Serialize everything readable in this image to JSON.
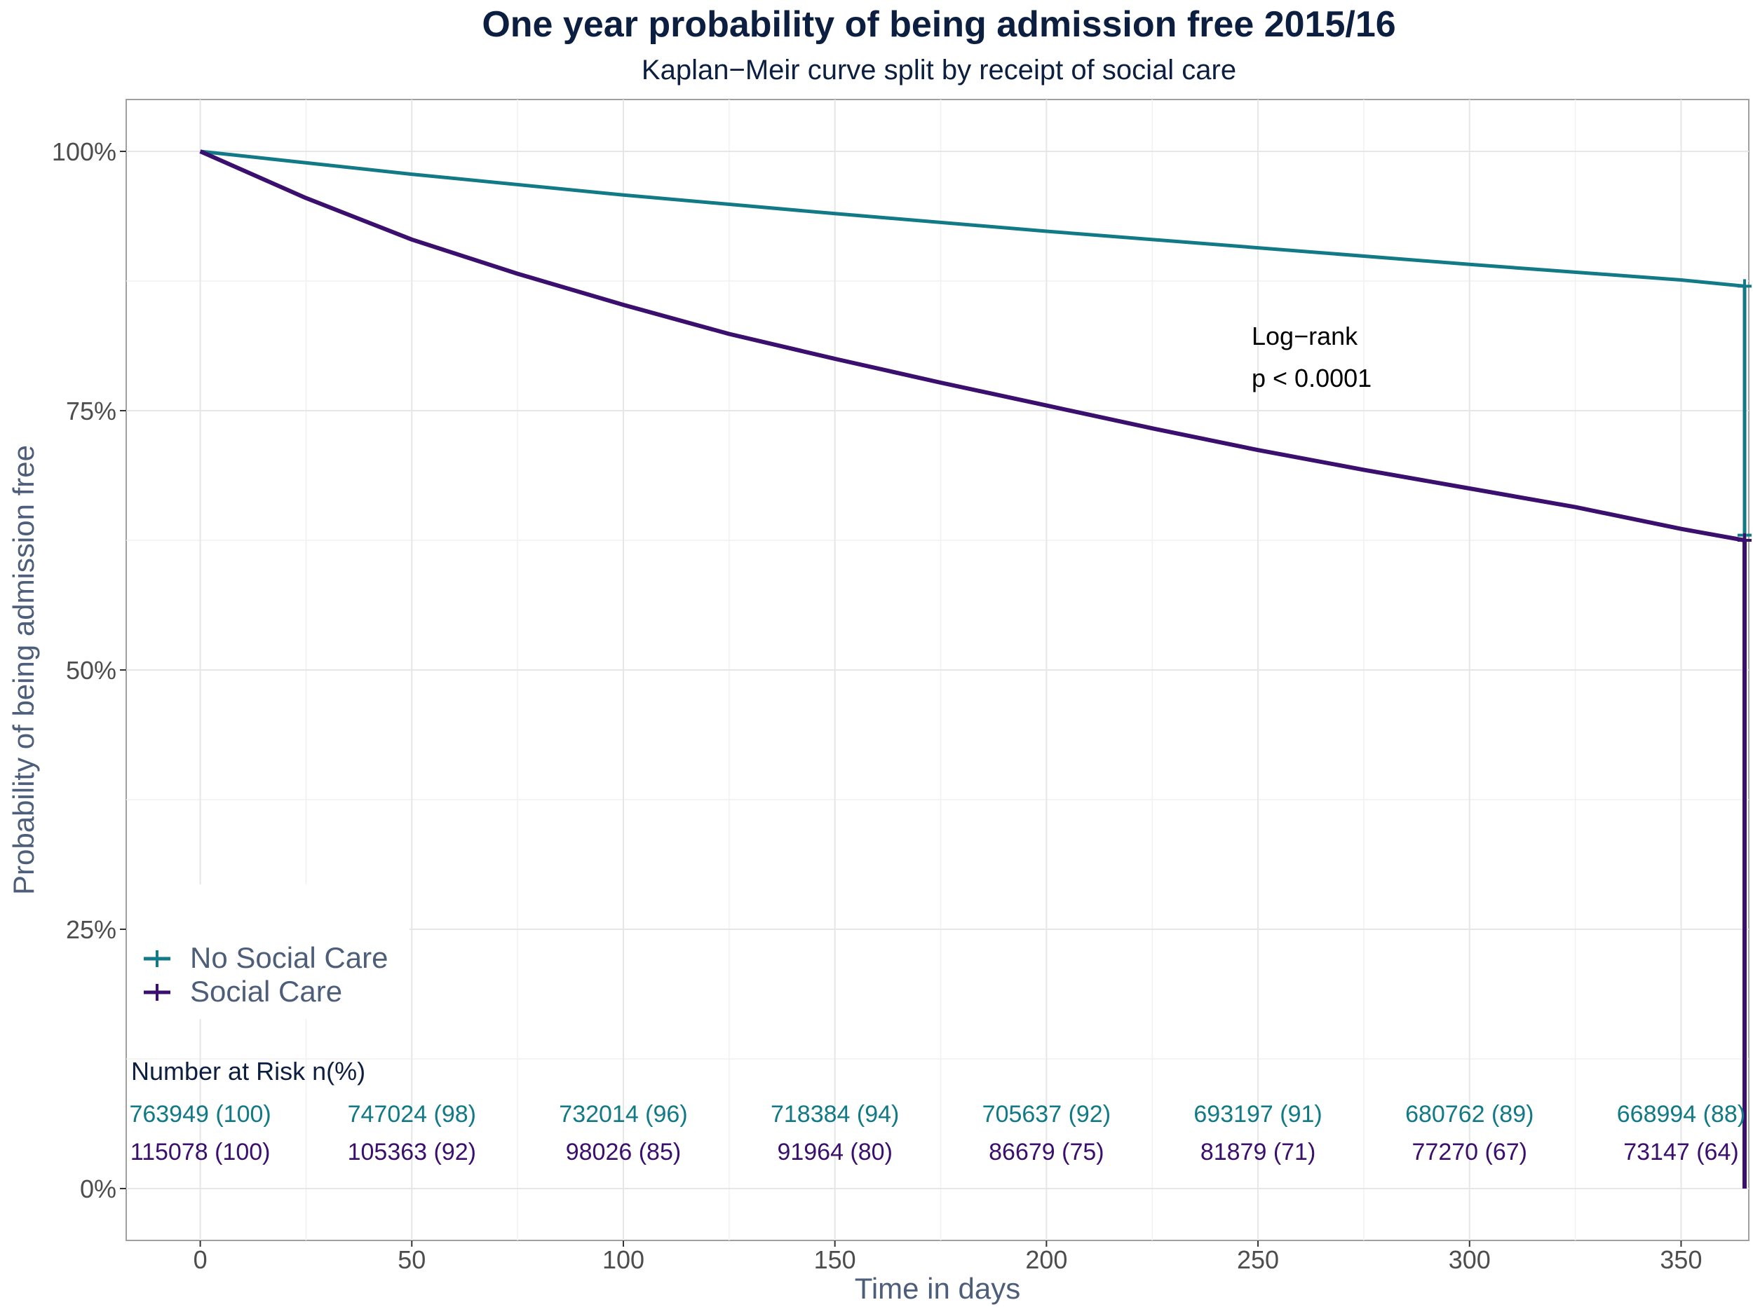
{
  "chart_data": {
    "type": "line",
    "title": "One year probability of being admission free 2015/16",
    "subtitle": "Kaplan−Meir curve split by receipt of social care",
    "xlabel": "Time in days",
    "ylabel": "Probability of being admission free",
    "xlim": [
      -17.5,
      366
    ],
    "ylim": [
      -0.05,
      1.05
    ],
    "x_ticks": [
      0,
      50,
      100,
      150,
      200,
      250,
      300,
      350
    ],
    "x_tick_labels": [
      "0",
      "50",
      "100",
      "150",
      "200",
      "250",
      "300",
      "350"
    ],
    "y_ticks": [
      0,
      0.25,
      0.5,
      0.75,
      1
    ],
    "y_tick_labels": [
      "0%",
      "25%",
      "50%",
      "75%",
      "100%"
    ],
    "grid": true,
    "legend_position": "bottom-left",
    "annotation": [
      "Log−rank",
      "p < 0.0001"
    ],
    "series": [
      {
        "name": "No Social Care",
        "color": "#117a86",
        "x": [
          0,
          50,
          100,
          150,
          200,
          250,
          300,
          350,
          365,
          365,
          365
        ],
        "y": [
          1.0,
          0.978,
          0.958,
          0.94,
          0.923,
          0.907,
          0.891,
          0.876,
          0.87,
          0.63,
          0.625
        ],
        "censor_marks": [
          {
            "x": 365,
            "y": 0.87
          },
          {
            "x": 365,
            "y": 0.63
          }
        ]
      },
      {
        "name": "Social Care",
        "color": "#3b0f6e",
        "x": [
          0,
          25,
          50,
          75,
          100,
          125,
          150,
          175,
          200,
          225,
          250,
          275,
          300,
          325,
          350,
          365,
          365
        ],
        "y": [
          1.0,
          0.955,
          0.915,
          0.882,
          0.852,
          0.824,
          0.8,
          0.777,
          0.755,
          0.733,
          0.712,
          0.693,
          0.675,
          0.657,
          0.636,
          0.625,
          0.0
        ],
        "censor_marks": [
          {
            "x": 365,
            "y": 0.625
          }
        ]
      }
    ],
    "risk_table": {
      "title": "Number at Risk n(%)",
      "times": [
        0,
        50,
        100,
        150,
        200,
        250,
        300,
        350
      ],
      "rows": [
        {
          "series": "No Social Care",
          "color": "#117a86",
          "values": [
            "763949 (100)",
            "747024 (98)",
            "732014 (96)",
            "718384 (94)",
            "705637 (92)",
            "693197 (91)",
            "680762 (89)",
            "668994 (88)"
          ]
        },
        {
          "series": "Social Care",
          "color": "#3b0f6e",
          "values": [
            "115078 (100)",
            "105363 (92)",
            "98026 (85)",
            "91964 (80)",
            "86679 (75)",
            "81879 (71)",
            "77270 (67)",
            "73147 (64)"
          ]
        }
      ]
    }
  }
}
